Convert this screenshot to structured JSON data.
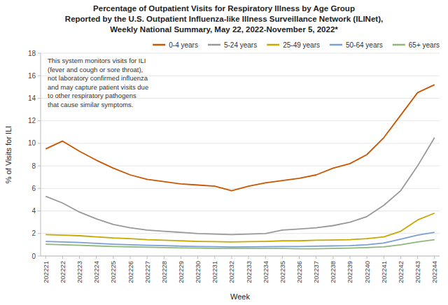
{
  "chart_data": {
    "type": "line",
    "title": "Percentage of Outpatient Visits for Respiratory Illness by Age Group\nReported by the U.S. Outpatient Influenza-like Illness Surveillance Network (ILINet),\nWeekly National Summary, May 22, 2022-November 5, 2022*",
    "x_label": "Week",
    "y_label": "% of Visits for ILI",
    "annotations": [
      "This system monitors visits for ILI\n(fever and cough or sore throat),\nnot laboratory confirmed influenza\nand may capture patient visits due\nto other respiratory pathogens\nthat cause similar symptoms."
    ],
    "categories": [
      "202221",
      "202222",
      "202223",
      "202224",
      "202225",
      "202226",
      "202227",
      "202228",
      "202229",
      "202230",
      "202231",
      "202232",
      "202233",
      "202234",
      "202235",
      "202236",
      "202237",
      "202238",
      "202239",
      "202240",
      "202241",
      "202242",
      "202243",
      "202244"
    ],
    "series": [
      {
        "name": "0-4 years",
        "color": "#cc5500",
        "values": [
          9.5,
          10.2,
          9.3,
          8.5,
          7.8,
          7.2,
          6.8,
          6.6,
          6.4,
          6.3,
          6.2,
          5.8,
          6.2,
          6.5,
          6.7,
          6.9,
          7.2,
          7.8,
          8.2,
          9.0,
          10.5,
          12.5,
          14.5,
          15.2
        ]
      },
      {
        "name": "5-24 years",
        "color": "#999999",
        "values": [
          5.3,
          4.7,
          3.9,
          3.3,
          2.8,
          2.5,
          2.3,
          2.2,
          2.1,
          2.0,
          1.95,
          1.9,
          1.95,
          2.0,
          2.3,
          2.4,
          2.5,
          2.7,
          3.0,
          3.5,
          4.5,
          5.8,
          8.0,
          10.5
        ]
      },
      {
        "name": "25-49 years",
        "color": "#c8a800",
        "values": [
          1.9,
          1.85,
          1.8,
          1.7,
          1.6,
          1.55,
          1.45,
          1.4,
          1.35,
          1.3,
          1.28,
          1.25,
          1.28,
          1.3,
          1.35,
          1.35,
          1.4,
          1.42,
          1.45,
          1.55,
          1.7,
          2.2,
          3.2,
          3.8
        ]
      },
      {
        "name": "50-64 years",
        "color": "#7b9fd4",
        "values": [
          1.3,
          1.25,
          1.2,
          1.12,
          1.05,
          1.0,
          0.95,
          0.92,
          0.88,
          0.85,
          0.83,
          0.8,
          0.82,
          0.83,
          0.85,
          0.85,
          0.88,
          0.9,
          0.92,
          1.0,
          1.15,
          1.5,
          1.85,
          2.1
        ]
      },
      {
        "name": "65+ years",
        "color": "#8db87a",
        "values": [
          1.05,
          1.0,
          0.95,
          0.9,
          0.85,
          0.82,
          0.78,
          0.75,
          0.72,
          0.7,
          0.68,
          0.67,
          0.68,
          0.68,
          0.68,
          0.65,
          0.65,
          0.67,
          0.7,
          0.75,
          0.82,
          1.0,
          1.25,
          1.45
        ]
      }
    ],
    "ylim": [
      0,
      18
    ],
    "yticks": [
      0,
      2,
      4,
      6,
      8,
      10,
      12,
      14,
      16,
      18
    ],
    "grid": true,
    "legend": "upper right"
  }
}
